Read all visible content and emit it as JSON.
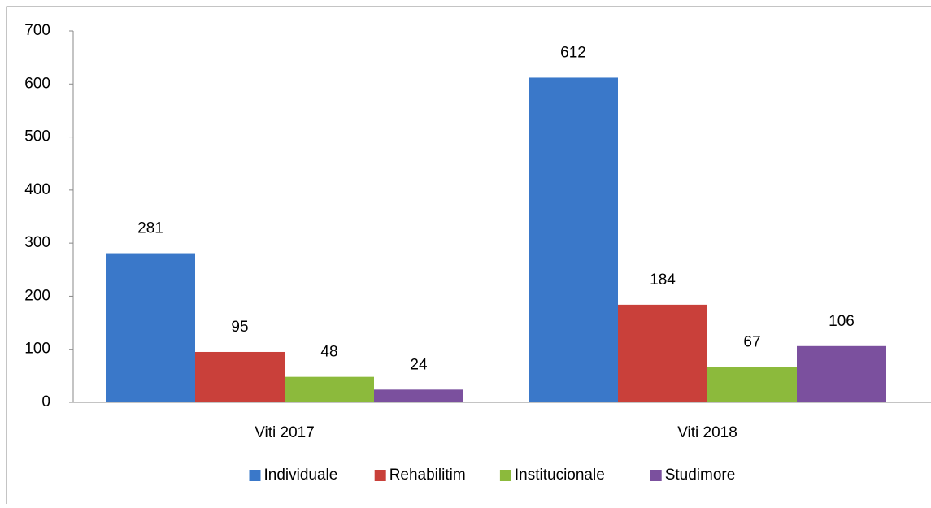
{
  "chart_data": {
    "type": "bar",
    "categories": [
      "Viti 2017",
      "Viti 2018"
    ],
    "series": [
      {
        "name": "Individuale",
        "color": "#3a78c9",
        "values": [
          281,
          612
        ]
      },
      {
        "name": "Rehabilitim",
        "color": "#c9403a",
        "values": [
          95,
          184
        ]
      },
      {
        "name": "Institucionale",
        "color": "#8cba3c",
        "values": [
          48,
          67
        ]
      },
      {
        "name": "Studimore",
        "color": "#7b509e",
        "values": [
          24,
          106
        ]
      }
    ],
    "ylim": [
      0,
      700
    ],
    "yticks": [
      0,
      100,
      200,
      300,
      400,
      500,
      600,
      700
    ],
    "grid": false,
    "legend": "bottom"
  }
}
